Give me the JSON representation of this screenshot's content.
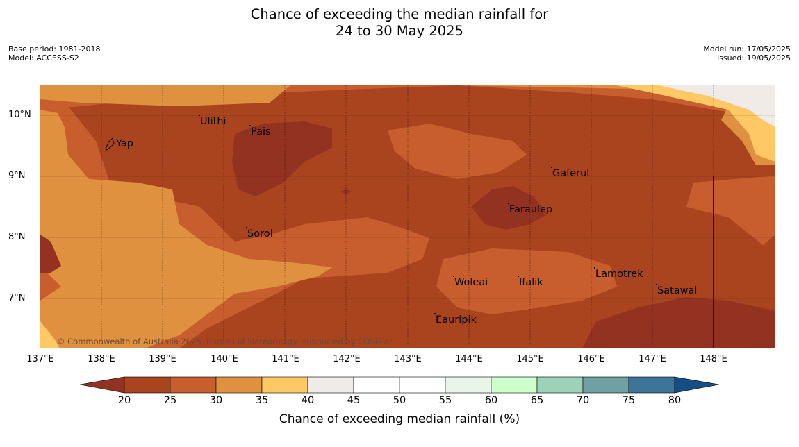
{
  "title": {
    "line1": "Chance of exceeding the median rainfall for",
    "line2": "24 to 30 May 2025"
  },
  "meta_left": {
    "base_period": "Base period: 1981-2018",
    "model": "Model: ACCESS-S2"
  },
  "meta_right": {
    "model_run": "Model run: 17/05/2025",
    "issued": "Issued: 19/05/2025"
  },
  "map": {
    "lat_labels": [
      "10°N",
      "9°N",
      "8°N",
      "7°N"
    ],
    "lon_labels": [
      "137°E",
      "138°E",
      "139°E",
      "140°E",
      "141°E",
      "142°E",
      "143°E",
      "144°E",
      "145°E",
      "146°E",
      "147°E",
      "148°E"
    ],
    "places": [
      "Ulithi",
      "Pais",
      "Yap",
      "Gaferut",
      "Faraulep",
      "Sorol",
      "Lamotrek",
      "Woleai",
      "Ifalik",
      "Satawal",
      "Eauripik"
    ],
    "copyright": "© Commonwealth of Australia 2025, Bureau of Meteorology, supported by COSPPac"
  },
  "colorbar": {
    "label": "Chance of exceeding median rainfall (%)",
    "ticks": [
      "20",
      "25",
      "30",
      "35",
      "40",
      "45",
      "50",
      "55",
      "60",
      "65",
      "70",
      "75",
      "80"
    ],
    "colors": {
      "below_20": "#943222",
      "20_25": "#a9441f",
      "25_30": "#c85e2e",
      "30_35": "#e09140",
      "35_40": "#fec865",
      "40_45": "#f0ebe6",
      "45_50": "#ffffff",
      "50_55": "#ffffff",
      "55_60": "#eaf5ea",
      "60_65": "#ccffcc",
      "65_70": "#9dd2b8",
      "70_75": "#6ea0a4",
      "75_80": "#3d7499",
      "above_80": "#154d85"
    }
  }
}
